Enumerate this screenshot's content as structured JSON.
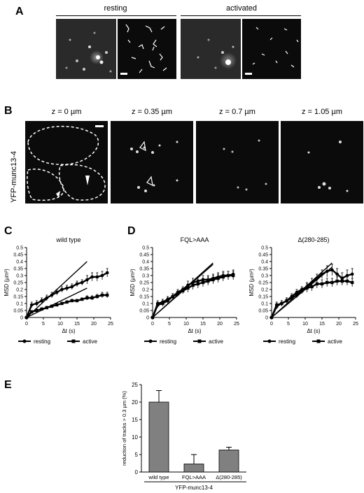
{
  "panel_a": {
    "letter": "A",
    "group_labels": [
      "resting",
      "activated"
    ]
  },
  "panel_b": {
    "letter": "B",
    "side_label": "YFP-munc13-4",
    "z_labels": [
      "z = 0 µm",
      "z = 0.35 µm",
      "z = 0.7 µm",
      "z = 1.05 µm"
    ]
  },
  "panel_c": {
    "letter": "C"
  },
  "panel_d": {
    "letter": "D"
  },
  "panel_e": {
    "letter": "E"
  },
  "chart_data": [
    {
      "type": "line",
      "panel": "C",
      "title": "wild type",
      "xlabel": "Δt (s)",
      "ylabel": "MSD (µm²)",
      "xlim": [
        0,
        25
      ],
      "ylim": [
        0,
        0.5
      ],
      "xticks": [
        0,
        5,
        10,
        15,
        20,
        25
      ],
      "yticks": [
        0,
        0.05,
        0.1,
        0.15,
        0.2,
        0.25,
        0.3,
        0.35,
        0.4,
        0.45,
        0.5
      ],
      "legend": [
        "resting",
        "active"
      ],
      "legend_position": "bottom",
      "series": [
        {
          "name": "resting",
          "marker": "circle",
          "x": [
            0,
            1.5,
            3,
            4.5,
            6,
            7.5,
            9,
            10.5,
            12,
            13.5,
            15,
            16.5,
            18,
            19.5,
            21,
            22.5,
            24
          ],
          "y": [
            0,
            0.09,
            0.1,
            0.12,
            0.14,
            0.16,
            0.18,
            0.2,
            0.21,
            0.22,
            0.24,
            0.25,
            0.27,
            0.29,
            0.29,
            0.3,
            0.32
          ],
          "err": [
            0,
            0.02,
            0.02,
            0.02,
            0.02,
            0.02,
            0.02,
            0.02,
            0.02,
            0.02,
            0.02,
            0.02,
            0.03,
            0.03,
            0.03,
            0.03,
            0.03
          ]
        },
        {
          "name": "active",
          "marker": "square",
          "x": [
            0,
            1.5,
            3,
            4.5,
            6,
            7.5,
            9,
            10.5,
            12,
            13.5,
            15,
            16.5,
            18,
            19.5,
            21,
            22.5,
            24
          ],
          "y": [
            0,
            0.04,
            0.05,
            0.06,
            0.07,
            0.08,
            0.09,
            0.1,
            0.11,
            0.12,
            0.12,
            0.13,
            0.14,
            0.14,
            0.15,
            0.16,
            0.16
          ],
          "err": [
            0,
            0.01,
            0.01,
            0.01,
            0.01,
            0.01,
            0.01,
            0.01,
            0.01,
            0.01,
            0.01,
            0.01,
            0.015,
            0.015,
            0.015,
            0.02,
            0.02
          ]
        }
      ],
      "fit_lines": [
        {
          "x": [
            0,
            18
          ],
          "y": [
            0,
            0.4
          ]
        },
        {
          "x": [
            0,
            18
          ],
          "y": [
            0,
            0.21
          ]
        }
      ]
    },
    {
      "type": "line",
      "panel": "D1",
      "title": "FQL>AAA",
      "xlabel": "Δt (s)",
      "ylabel": "MSD (µm²)",
      "xlim": [
        0,
        25
      ],
      "ylim": [
        0,
        0.5
      ],
      "xticks": [
        0,
        5,
        10,
        15,
        20,
        25
      ],
      "yticks": [
        0,
        0.05,
        0.1,
        0.15,
        0.2,
        0.25,
        0.3,
        0.35,
        0.4,
        0.45,
        0.5
      ],
      "legend": [
        "resting",
        "active"
      ],
      "legend_position": "bottom",
      "series": [
        {
          "name": "resting",
          "marker": "circle",
          "x": [
            0,
            1.5,
            3,
            4.5,
            6,
            7.5,
            9,
            10.5,
            12,
            13.5,
            15,
            16.5,
            18,
            19.5,
            21,
            22.5,
            24
          ],
          "y": [
            0,
            0.1,
            0.11,
            0.13,
            0.15,
            0.18,
            0.2,
            0.23,
            0.25,
            0.26,
            0.27,
            0.27,
            0.28,
            0.29,
            0.3,
            0.3,
            0.31
          ],
          "err": [
            0,
            0.02,
            0.02,
            0.02,
            0.02,
            0.02,
            0.02,
            0.03,
            0.03,
            0.03,
            0.03,
            0.03,
            0.03,
            0.03,
            0.03,
            0.03,
            0.03
          ]
        },
        {
          "name": "active",
          "marker": "square",
          "x": [
            0,
            1.5,
            3,
            4.5,
            6,
            7.5,
            9,
            10.5,
            12,
            13.5,
            15,
            16.5,
            18,
            19.5,
            21,
            22.5,
            24
          ],
          "y": [
            0,
            0.09,
            0.1,
            0.12,
            0.15,
            0.17,
            0.19,
            0.21,
            0.23,
            0.24,
            0.25,
            0.26,
            0.27,
            0.28,
            0.29,
            0.3,
            0.3
          ],
          "err": [
            0,
            0.02,
            0.02,
            0.02,
            0.02,
            0.02,
            0.02,
            0.03,
            0.03,
            0.03,
            0.03,
            0.03,
            0.03,
            0.03,
            0.03,
            0.03,
            0.03
          ]
        }
      ],
      "fit_lines": [
        {
          "x": [
            0,
            18
          ],
          "y": [
            0,
            0.39
          ]
        },
        {
          "x": [
            0,
            18
          ],
          "y": [
            0,
            0.38
          ]
        }
      ]
    },
    {
      "type": "line",
      "panel": "D2",
      "title": "Δ(280-285)",
      "xlabel": "Δt (s)",
      "ylabel": "MSD (µm²)",
      "xlim": [
        0,
        25
      ],
      "ylim": [
        0,
        0.5
      ],
      "xticks": [
        0,
        5,
        10,
        15,
        20,
        25
      ],
      "yticks": [
        0,
        0.05,
        0.1,
        0.15,
        0.2,
        0.25,
        0.3,
        0.35,
        0.4,
        0.45,
        0.5
      ],
      "legend": [
        "resting",
        "active"
      ],
      "legend_position": "bottom",
      "series": [
        {
          "name": "resting",
          "marker": "circle",
          "x": [
            0,
            1.5,
            3,
            4.5,
            6,
            7.5,
            9,
            10.5,
            12,
            13.5,
            15,
            16.5,
            18,
            19.5,
            21,
            22.5,
            24
          ],
          "y": [
            0,
            0.09,
            0.1,
            0.12,
            0.15,
            0.18,
            0.2,
            0.22,
            0.25,
            0.28,
            0.31,
            0.33,
            0.34,
            0.31,
            0.28,
            0.3,
            0.31
          ],
          "err": [
            0,
            0.02,
            0.02,
            0.02,
            0.02,
            0.02,
            0.02,
            0.03,
            0.03,
            0.03,
            0.03,
            0.04,
            0.04,
            0.04,
            0.04,
            0.04,
            0.04
          ]
        },
        {
          "name": "active",
          "marker": "square",
          "x": [
            0,
            1.5,
            3,
            4.5,
            6,
            7.5,
            9,
            10.5,
            12,
            13.5,
            15,
            16.5,
            18,
            19.5,
            21,
            22.5,
            24
          ],
          "y": [
            0,
            0.08,
            0.1,
            0.12,
            0.14,
            0.16,
            0.19,
            0.21,
            0.22,
            0.24,
            0.24,
            0.25,
            0.25,
            0.26,
            0.26,
            0.26,
            0.25
          ],
          "err": [
            0,
            0.02,
            0.02,
            0.02,
            0.02,
            0.02,
            0.02,
            0.03,
            0.03,
            0.03,
            0.03,
            0.03,
            0.03,
            0.03,
            0.03,
            0.03,
            0.03
          ]
        }
      ],
      "fit_lines": [
        {
          "x": [
            0,
            18
          ],
          "y": [
            0,
            0.39
          ]
        },
        {
          "x": [
            0,
            18
          ],
          "y": [
            0,
            0.36
          ]
        }
      ]
    },
    {
      "type": "bar",
      "panel": "E",
      "ylabel": "reduction of tracks > 0.3 µm (%)",
      "xlabel": "YFP-munc13-4",
      "categories": [
        "wild type",
        "FQL>AAA",
        "Δ(280-285)"
      ],
      "values": [
        20,
        2.3,
        6.3
      ],
      "errors": [
        3.3,
        2.7,
        0.8
      ],
      "ylim": [
        0,
        25
      ],
      "yticks": [
        0,
        5,
        10,
        15,
        20,
        25
      ],
      "bar_color": "#808080"
    }
  ]
}
